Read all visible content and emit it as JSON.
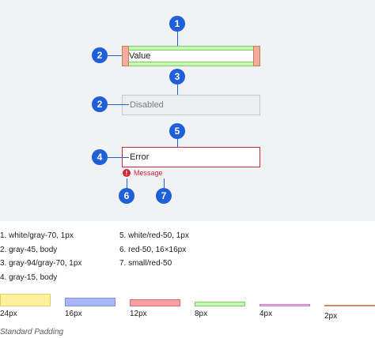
{
  "diagram": {
    "markers": [
      "1",
      "2",
      "3",
      "2",
      "5",
      "4",
      "6",
      "7"
    ],
    "fields": {
      "default_value": "Value",
      "disabled_label": "Disabled",
      "error_value": "Error",
      "error_icon": "!",
      "error_message": "Message"
    }
  },
  "legend": {
    "left": [
      "1. white/gray-70, 1px",
      "2. gray-45, body",
      "3. gray-94/gray-70, 1px",
      "4. gray-15, body"
    ],
    "right": [
      "5. white/red-50, 1px",
      "6. red-50, 16×16px",
      "7. small/red-50"
    ]
  },
  "padding_swatches": [
    {
      "label": "24px",
      "color": "#fff0a0",
      "border": "#e2cf5d"
    },
    {
      "label": "16px",
      "color": "#a9b7f7",
      "border": "#7f8fe0"
    },
    {
      "label": "12px",
      "color": "#f7a0a6",
      "border": "#d66a72"
    },
    {
      "label": "8px",
      "color": "#c8f5b8",
      "border": "#79cf63"
    },
    {
      "label": "4px",
      "color": "#f0b8f0",
      "border": "#c97ac9"
    },
    {
      "label": "2px",
      "color": "#c98a6a",
      "border": "#c98a6a"
    }
  ],
  "footer": "Standard Padding",
  "colors": {
    "marker": "#1f5fd8",
    "error": "#d0263c",
    "canvas": "#f1f2f4"
  }
}
